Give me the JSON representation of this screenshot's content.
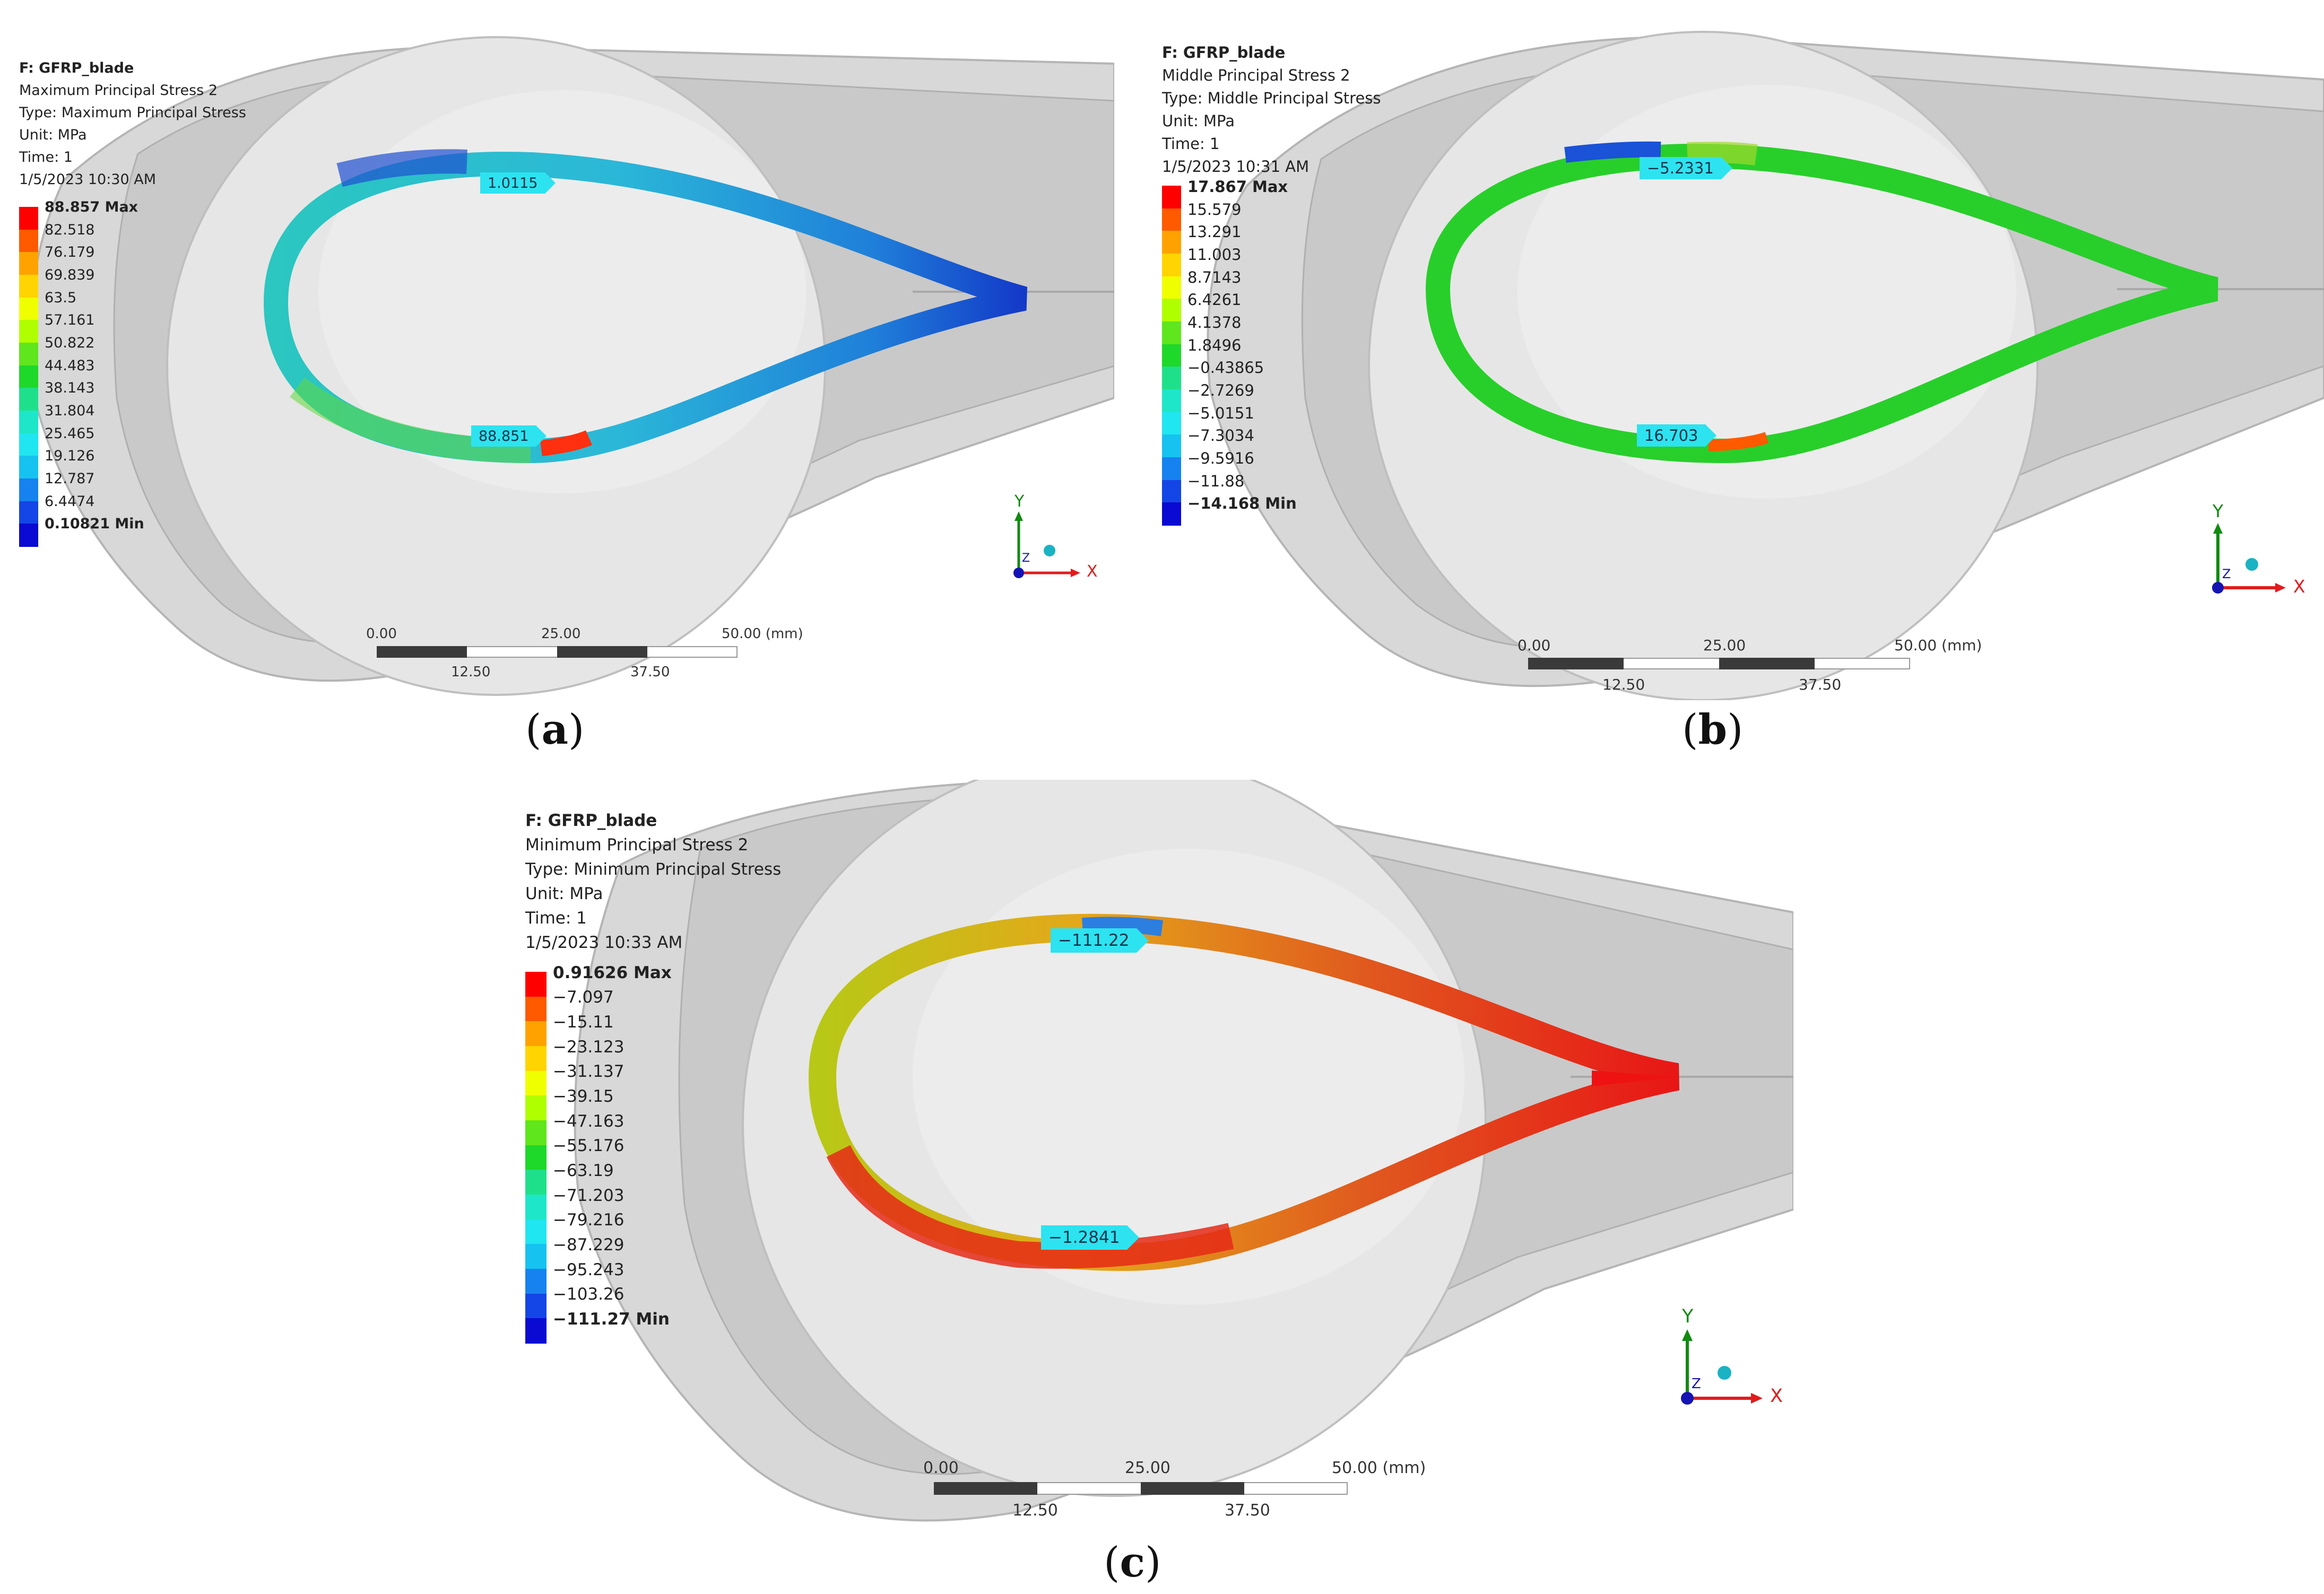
{
  "panels": [
    {
      "info": [
        "F: GFRP_blade",
        "Maximum Principal Stress 2",
        "Type: Maximum Principal Stress",
        "Unit: MPa",
        "Time: 1",
        "1/5/2023 10:30 AM"
      ],
      "legend": [
        "88.857 Max",
        "82.518",
        "76.179",
        "69.839",
        "63.5",
        "57.161",
        "50.822",
        "44.483",
        "38.143",
        "31.804",
        "25.465",
        "19.126",
        "12.787",
        "6.4474",
        "0.10821 Min"
      ],
      "probes": [
        "1.0115",
        "88.851"
      ],
      "scale_labels": [
        "0.00",
        "25.00",
        "50.00 (mm)",
        "12.50",
        "37.50"
      ],
      "axes": [
        "Y",
        "X",
        "Z"
      ],
      "caption": {
        "open": "(",
        "letter": "a",
        "close": ")"
      }
    },
    {
      "info": [
        "F: GFRP_blade",
        "Middle Principal Stress 2",
        "Type: Middle Principal Stress",
        "Unit: MPa",
        "Time: 1",
        "1/5/2023 10:31 AM"
      ],
      "legend": [
        "17.867 Max",
        "15.579",
        "13.291",
        "11.003",
        "8.7143",
        "6.4261",
        "4.1378",
        "1.8496",
        "−0.43865",
        "−2.7269",
        "−5.0151",
        "−7.3034",
        "−9.5916",
        "−11.88",
        "−14.168 Min"
      ],
      "probes": [
        "−5.2331",
        "16.703"
      ],
      "scale_labels": [
        "0.00",
        "25.00",
        "50.00 (mm)",
        "12.50",
        "37.50"
      ],
      "axes": [
        "Y",
        "X",
        "Z"
      ],
      "caption": {
        "open": "(",
        "letter": "b",
        "close": ")"
      }
    },
    {
      "info": [
        "F: GFRP_blade",
        "Minimum Principal Stress 2",
        "Type: Minimum Principal Stress",
        "Unit: MPa",
        "Time: 1",
        "1/5/2023 10:33 AM"
      ],
      "legend": [
        "0.91626 Max",
        "−7.097",
        "−15.11",
        "−23.123",
        "−31.137",
        "−39.15",
        "−47.163",
        "−55.176",
        "−63.19",
        "−71.203",
        "−79.216",
        "−87.229",
        "−95.243",
        "−103.26",
        "−111.27 Min"
      ],
      "probes": [
        "−111.22",
        "−1.2841"
      ],
      "scale_labels": [
        "0.00",
        "25.00",
        "50.00 (mm)",
        "12.50",
        "37.50"
      ],
      "axes": [
        "Y",
        "X",
        "Z"
      ],
      "caption": {
        "open": "(",
        "letter": "c",
        "close": ")"
      }
    }
  ],
  "colors": {
    "legend_scale": [
      "#ff0000",
      "#ff5a00",
      "#ffa200",
      "#ffd400",
      "#f0ff00",
      "#b0ff00",
      "#5fe61c",
      "#1ed82a",
      "#1fe08a",
      "#1ee6c8",
      "#1fe6f0",
      "#16c2f0",
      "#1682f0",
      "#1445e6",
      "#0a0ad2"
    ],
    "probe": "#2de3f0",
    "background_gray": "#d6d6d6",
    "x_axis": "#e31b1b",
    "y_axis": "#118a11",
    "z_axis": "#1414b4"
  },
  "icons": [
    "coordinate-triad-icon",
    "probe-flag-icon"
  ]
}
